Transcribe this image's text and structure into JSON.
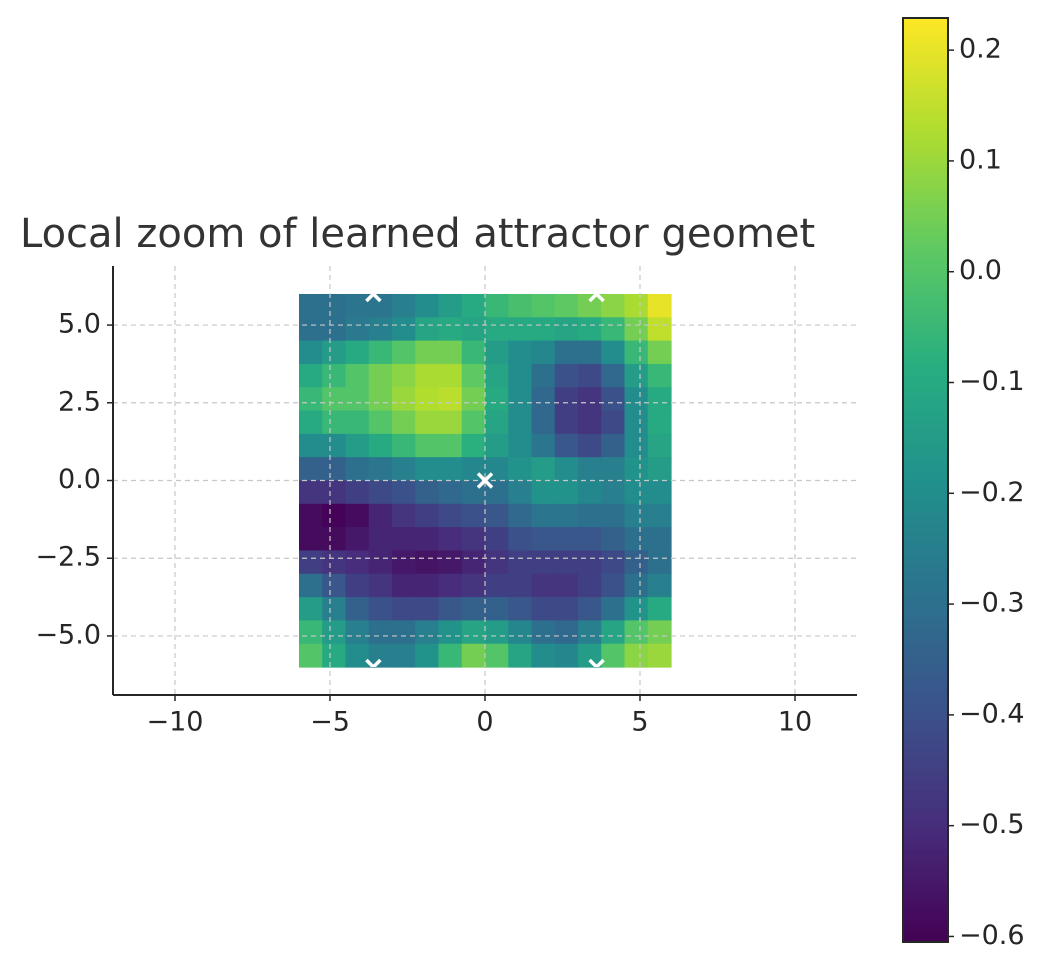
{
  "chart_data": {
    "type": "heatmap",
    "title": "Local zoom of learned attractor geomet",
    "colormap": "viridis",
    "grid": true,
    "xlim": [
      -12,
      12
    ],
    "ylim": [
      -6.9,
      6.9
    ],
    "xticks": [
      {
        "value": -10,
        "label": "−10"
      },
      {
        "value": -5,
        "label": "−5"
      },
      0,
      5,
      10
    ],
    "yticks": [
      {
        "value": 5,
        "label": "5.0"
      },
      2.5,
      {
        "value": 0,
        "label": "0.0"
      },
      {
        "value": -2.5,
        "label": "−2.5"
      },
      {
        "value": -5,
        "label": "−5.0"
      }
    ],
    "xrange": [
      -6,
      6
    ],
    "yrange": [
      -6,
      6
    ],
    "z": [
      [
        -0.3,
        -0.3,
        -0.28,
        -0.28,
        -0.25,
        -0.2,
        -0.15,
        -0.1,
        -0.05,
        -0.02,
        0.0,
        0.02,
        0.05,
        0.08,
        0.12,
        0.2
      ],
      [
        -0.3,
        -0.3,
        -0.27,
        -0.25,
        -0.2,
        -0.12,
        -0.1,
        -0.12,
        -0.1,
        -0.1,
        -0.1,
        -0.12,
        -0.1,
        -0.05,
        0.05,
        0.15
      ],
      [
        -0.2,
        -0.15,
        -0.1,
        -0.05,
        0.0,
        0.05,
        0.05,
        -0.05,
        -0.15,
        -0.2,
        -0.22,
        -0.3,
        -0.3,
        -0.2,
        -0.05,
        0.05
      ],
      [
        -0.1,
        -0.05,
        0.0,
        0.05,
        0.08,
        0.12,
        0.12,
        0.02,
        -0.12,
        -0.2,
        -0.3,
        -0.4,
        -0.42,
        -0.32,
        -0.15,
        -0.05
      ],
      [
        -0.05,
        0.0,
        0.0,
        0.05,
        0.1,
        0.13,
        0.14,
        0.05,
        -0.1,
        -0.2,
        -0.32,
        -0.45,
        -0.48,
        -0.4,
        -0.2,
        -0.1
      ],
      [
        -0.1,
        -0.05,
        -0.05,
        0.0,
        0.05,
        0.1,
        0.1,
        0.0,
        -0.12,
        -0.2,
        -0.32,
        -0.45,
        -0.48,
        -0.42,
        -0.2,
        -0.1
      ],
      [
        -0.2,
        -0.2,
        -0.15,
        -0.1,
        -0.05,
        0.0,
        0.0,
        -0.08,
        -0.15,
        -0.2,
        -0.28,
        -0.38,
        -0.42,
        -0.35,
        -0.2,
        -0.12
      ],
      [
        -0.35,
        -0.35,
        -0.3,
        -0.28,
        -0.25,
        -0.2,
        -0.2,
        -0.22,
        -0.22,
        -0.18,
        -0.15,
        -0.2,
        -0.25,
        -0.25,
        -0.18,
        -0.15
      ],
      [
        -0.48,
        -0.48,
        -0.45,
        -0.42,
        -0.4,
        -0.35,
        -0.32,
        -0.3,
        -0.3,
        -0.25,
        -0.18,
        -0.18,
        -0.22,
        -0.25,
        -0.2,
        -0.2
      ],
      [
        -0.58,
        -0.6,
        -0.58,
        -0.52,
        -0.48,
        -0.45,
        -0.42,
        -0.4,
        -0.38,
        -0.32,
        -0.28,
        -0.28,
        -0.3,
        -0.3,
        -0.25,
        -0.25
      ],
      [
        -0.58,
        -0.58,
        -0.55,
        -0.52,
        -0.52,
        -0.52,
        -0.5,
        -0.48,
        -0.45,
        -0.4,
        -0.38,
        -0.38,
        -0.38,
        -0.35,
        -0.3,
        -0.3
      ],
      [
        -0.45,
        -0.48,
        -0.5,
        -0.52,
        -0.55,
        -0.56,
        -0.55,
        -0.52,
        -0.48,
        -0.45,
        -0.45,
        -0.45,
        -0.45,
        -0.42,
        -0.35,
        -0.3
      ],
      [
        -0.3,
        -0.38,
        -0.45,
        -0.48,
        -0.52,
        -0.52,
        -0.5,
        -0.48,
        -0.45,
        -0.45,
        -0.48,
        -0.48,
        -0.45,
        -0.4,
        -0.3,
        -0.25
      ],
      [
        -0.15,
        -0.25,
        -0.35,
        -0.4,
        -0.42,
        -0.42,
        -0.38,
        -0.35,
        -0.35,
        -0.38,
        -0.42,
        -0.42,
        -0.38,
        -0.3,
        -0.18,
        -0.1
      ],
      [
        -0.05,
        -0.15,
        -0.25,
        -0.3,
        -0.3,
        -0.25,
        -0.18,
        -0.12,
        -0.15,
        -0.22,
        -0.3,
        -0.32,
        -0.25,
        -0.12,
        0.0,
        0.05
      ],
      [
        0.0,
        -0.1,
        -0.2,
        -0.25,
        -0.25,
        -0.18,
        -0.05,
        0.05,
        0.0,
        -0.12,
        -0.2,
        -0.22,
        -0.15,
        0.0,
        0.08,
        0.1
      ]
    ],
    "clim": [
      -0.605,
      0.229
    ],
    "cticks": [
      0.2,
      0.1,
      {
        "value": 0,
        "label": "0.0"
      },
      {
        "value": -0.1,
        "label": "−0.1"
      },
      {
        "value": -0.2,
        "label": "−0.2"
      },
      {
        "value": -0.3,
        "label": "−0.3"
      },
      {
        "value": -0.4,
        "label": "−0.4"
      },
      {
        "value": -0.5,
        "label": "−0.5"
      },
      {
        "value": -0.6,
        "label": "−0.6"
      }
    ],
    "markers": {
      "x": [
        0,
        -3.6,
        3.6,
        -3.6,
        3.6
      ],
      "y": [
        0,
        6,
        6,
        -6,
        -6
      ],
      "color": "#ffffff"
    }
  }
}
